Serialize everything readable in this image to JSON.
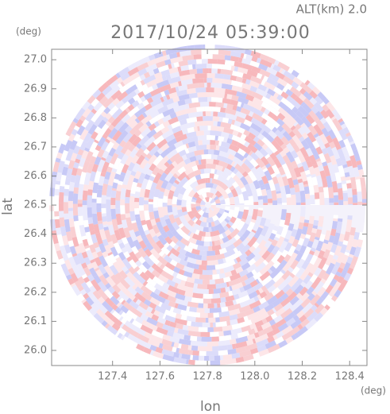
{
  "chart_data": {
    "type": "radar-image",
    "title": "2017/10/24 05:39:00",
    "annotation": "ALT(km) 2.0",
    "x_label": "lon",
    "y_label": "lat",
    "x_unit": "(deg)",
    "y_unit": "(deg)",
    "xlim": [
      127.143,
      128.473
    ],
    "ylim": [
      25.948,
      27.036
    ],
    "xticks": [
      127.4,
      127.6,
      127.8,
      {
        "value": 128,
        "label": "128.0"
      },
      128.2,
      128.4
    ],
    "yticks": [
      {
        "value": 26,
        "label": "26.0"
      },
      26.1,
      26.2,
      26.3,
      26.4,
      26.5,
      26.6,
      26.7,
      26.8,
      26.9,
      {
        "value": 27,
        "label": "27.0"
      }
    ]
  }
}
